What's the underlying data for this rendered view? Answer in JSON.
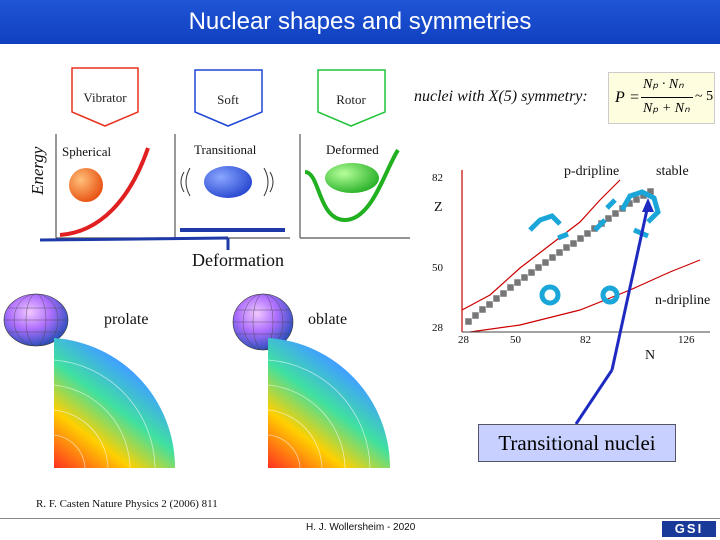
{
  "title": "Nuclear shapes and symmetries",
  "energy_axis_label": "Energy",
  "regimes": [
    {
      "box_label": "Vibrator",
      "shape_label": "Spherical",
      "box_color": "#e8321e"
    },
    {
      "box_label": "Soft",
      "shape_label": "Transitional",
      "box_color": "#1e46d8"
    },
    {
      "box_label": "Rotor",
      "shape_label": "Deformed",
      "box_color": "#22c43a"
    }
  ],
  "deformation_label": "Deformation",
  "symmetry_text": "nuclei with X(5) symmetry:",
  "formula": {
    "P": "P",
    "eq": "=",
    "num": "Nₚ · Nₙ",
    "den": "Nₚ + Nₙ",
    "approx": "~ 5"
  },
  "chart": {
    "z_label": "Z",
    "n_label": "N",
    "z_ticks": [
      "82",
      "50",
      "28"
    ],
    "n_ticks": [
      "28",
      "50",
      "82",
      "126"
    ],
    "p_dripline": "p-dripline",
    "stable": "stable",
    "n_dripline": "n-dripline"
  },
  "prolate_label": "prolate",
  "oblate_label": "oblate",
  "transitional_nuclei": "Transitional nuclei",
  "reference": "R. F. Casten Nature Physics 2 (2006) 811",
  "author": "H. J. Wollersheim - 2020",
  "logo_text": "GSI"
}
